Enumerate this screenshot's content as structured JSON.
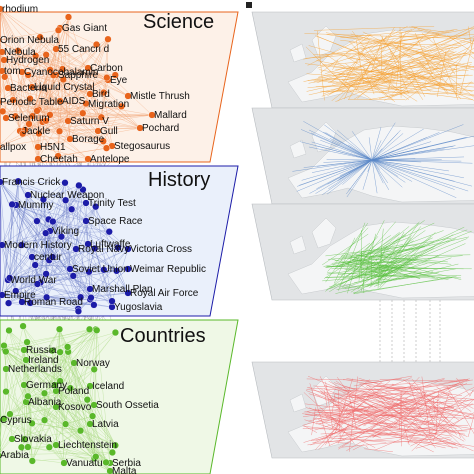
{
  "left_panel": {
    "layers": [
      {
        "title": "Science",
        "color": "#e8641c",
        "fill": "#fdf1e8",
        "edge_color": "#f0a070",
        "labels": [
          "rhodium",
          "Gas Giant",
          "Orion Nebula",
          "55 Cancri d",
          "Nebula",
          "Hydrogen",
          "Carbon",
          "tom",
          "Cyanocobalamin",
          "Eye",
          "Sapphire",
          "Liquid Crystal",
          "Mistle Thrush",
          "Bacteria",
          "Bird",
          "Periodic Table",
          "AIDS",
          "Migration",
          "Mallard",
          "Selenium",
          "Saturn V",
          "Pochard",
          "Jackle",
          "Gull",
          "Borage",
          "allpox",
          "H5N1",
          "Stegosaurus",
          "Cheetah",
          "Antelope"
        ]
      },
      {
        "title": "History",
        "color": "#1c1ca8",
        "fill": "#eaf0fb",
        "edge_color": "#7080c8",
        "labels": [
          "Francis Crick",
          "Nuclear Weapon",
          "Mummy",
          "Trinity Test",
          "Space Race",
          "Viking",
          "Modern History",
          "Royal Navy",
          "Luftwaffe",
          "centur",
          "Victoria Cross",
          "Soviet Union",
          "Weimar Republic",
          "World War",
          "Royal Air Force",
          "Marshall Plan",
          "Empire",
          "Roman Road",
          "Yugoslavia"
        ]
      },
      {
        "title": "Countries",
        "color": "#5ab82a",
        "fill": "#eff8e6",
        "edge_color": "#a8d880",
        "labels": [
          "Russia",
          "Ireland",
          "Norway",
          "Netherlands",
          "Germany",
          "Iceland",
          "Poland",
          "Albania",
          "Kosovo",
          "South Ossetia",
          "Cyprus",
          "Latvia",
          "Slovakia",
          "Liechtenstein",
          "Arabia",
          "Vanuatu",
          "Serbia",
          "Malta"
        ]
      }
    ]
  },
  "right_panel": {
    "maps": [
      {
        "edge_color": "#f5a030"
      },
      {
        "edge_color": "#5a88c8"
      },
      {
        "edge_color": "#5ac040"
      },
      {
        "edge_color": "#f06868"
      }
    ]
  }
}
